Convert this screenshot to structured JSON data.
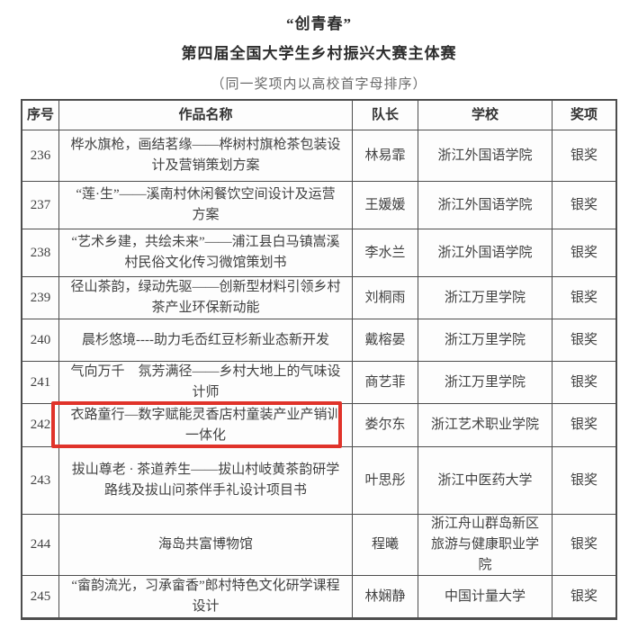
{
  "page": {
    "title_quote": "“创青春”",
    "title_main": "第四届全国大学生乡村振兴大赛主体赛",
    "subtitle": "（同一奖项内以高校首字母排序）"
  },
  "table": {
    "headers": [
      "序号",
      "作品名称",
      "队长",
      "学校",
      "奖项"
    ],
    "highlight_color": "#e0332a",
    "rows": [
      {
        "no": "236",
        "name": "桦水旗枪，画结茗缘——桦树村旗枪茶包装设计及营销策划方案",
        "leader": "林易霏",
        "school": "浙江外国语学院",
        "award": "银奖"
      },
      {
        "no": "237",
        "name": "“莲·生”——溪南村休闲餐饮空间设计及运营方案",
        "leader": "王媛媛",
        "school": "浙江外国语学院",
        "award": "银奖"
      },
      {
        "no": "238",
        "name": "“艺术乡建，共绘未来”——浦江县白马镇嵩溪村民俗文化传习微馆策划书",
        "leader": "李水兰",
        "school": "浙江外国语学院",
        "award": "银奖"
      },
      {
        "no": "239",
        "name": "径山茶韵，绿动先驱——创新型材料引领乡村茶产业环保新动能",
        "leader": "刘桐雨",
        "school": "浙江万里学院",
        "award": "银奖"
      },
      {
        "no": "240",
        "name": "晨杉悠境----助力毛岙红豆杉新业态新开发",
        "leader": "戴榕晏",
        "school": "浙江万里学院",
        "award": "银奖"
      },
      {
        "no": "241",
        "name": "气向万千　氛芳满径——乡村大地上的气味设计师",
        "leader": "商艺菲",
        "school": "浙江万里学院",
        "award": "银奖"
      },
      {
        "no": "242",
        "name": "衣路童行—数字赋能灵香店村童装产业产销训一体化",
        "leader": "娄尔东",
        "school": "浙江艺术职业学院",
        "award": "银奖",
        "highlighted": true
      },
      {
        "no": "243",
        "name": "拔山尊老 · 茶道养生——拔山村岐黄茶韵研学路线及拔山问茶伴手礼设计项目书",
        "leader": "叶思彤",
        "school": "浙江中医药大学",
        "award": "银奖"
      },
      {
        "no": "244",
        "name": "海岛共富博物馆",
        "leader": "程曦",
        "school": "浙江舟山群岛新区旅游与健康职业学院",
        "award": "银奖"
      },
      {
        "no": "245",
        "name": "“畲韵流光，习承畲香”郎村特色文化研学课程设计",
        "leader": "林娴静",
        "school": "中国计量大学",
        "award": "银奖"
      }
    ]
  }
}
